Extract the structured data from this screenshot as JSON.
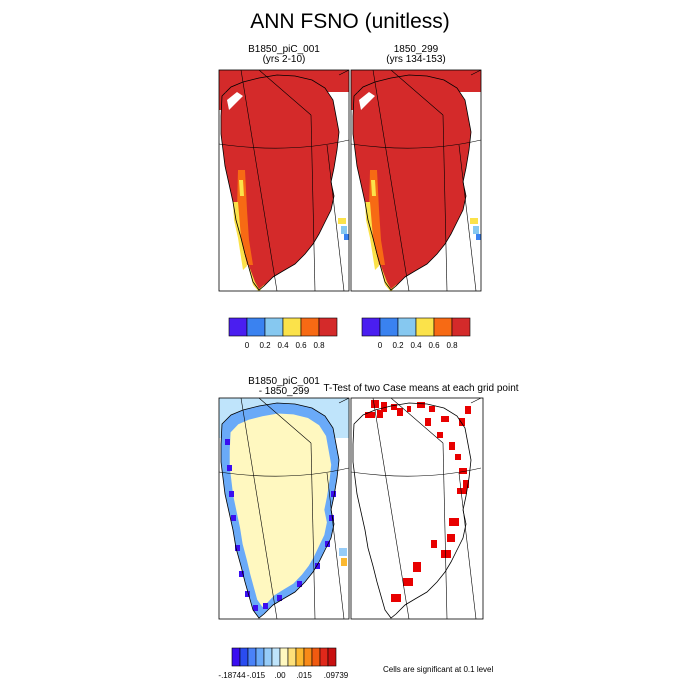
{
  "figure": {
    "title": "ANN FSNO (unitless)",
    "panels": [
      {
        "id": "case1",
        "label_line1": "B1850_piC_001",
        "label_line2": "(yrs 2-10)"
      },
      {
        "id": "case2",
        "label_line1": "1850_299",
        "label_line2": "(yrs 134-153)"
      },
      {
        "id": "diff",
        "label_line1": "B1850_piC_001",
        "label_line2": "- 1850_299"
      },
      {
        "id": "ttest",
        "label_line1": "T-Test of two Case means at each grid point",
        "label_line2": ""
      }
    ],
    "significance_note": "Cells are significant at 0.1 level"
  },
  "chart_data": [
    {
      "type": "heatmap",
      "title": "B1850_piC_001 (yrs 2-10)",
      "colorbar": {
        "colors": [
          "#4a1ef0",
          "#3a82f0",
          "#86c8f0",
          "#fbe24a",
          "#f76a14",
          "#d42a2a"
        ],
        "tick_labels": [
          "0",
          "0.2",
          "0.4",
          "0.6",
          "0.8"
        ],
        "range": [
          0,
          1
        ]
      },
      "dominant_value": "> 0.8 over interior ice sheet"
    },
    {
      "type": "heatmap",
      "title": "1850_299 (yrs 134-153)",
      "colorbar": {
        "colors": [
          "#4a1ef0",
          "#3a82f0",
          "#86c8f0",
          "#fbe24a",
          "#f76a14",
          "#d42a2a"
        ],
        "tick_labels": [
          "0",
          "0.2",
          "0.4",
          "0.6",
          "0.8"
        ],
        "range": [
          0,
          1
        ]
      },
      "dominant_value": "> 0.8 over interior ice sheet"
    },
    {
      "type": "heatmap",
      "title": "B1850_piC_001 - 1850_299",
      "colorbar": {
        "colors": [
          "#3a0ef0",
          "#2a4cf0",
          "#4a82f8",
          "#6aaaf8",
          "#96ccf8",
          "#bfe4fb",
          "#fff8c0",
          "#fde07a",
          "#fbb830",
          "#f88a18",
          "#f05a10",
          "#e0281a",
          "#c81010"
        ],
        "tick_labels": [
          "-.18744",
          "-.015",
          ".00",
          ".015",
          ".09739"
        ],
        "min": -0.18744,
        "max": 0.09739
      }
    },
    {
      "type": "heatmap",
      "title": "T-Test of two Case means at each grid point",
      "significance_level": 0.1,
      "significant_color": "#e80000"
    }
  ]
}
